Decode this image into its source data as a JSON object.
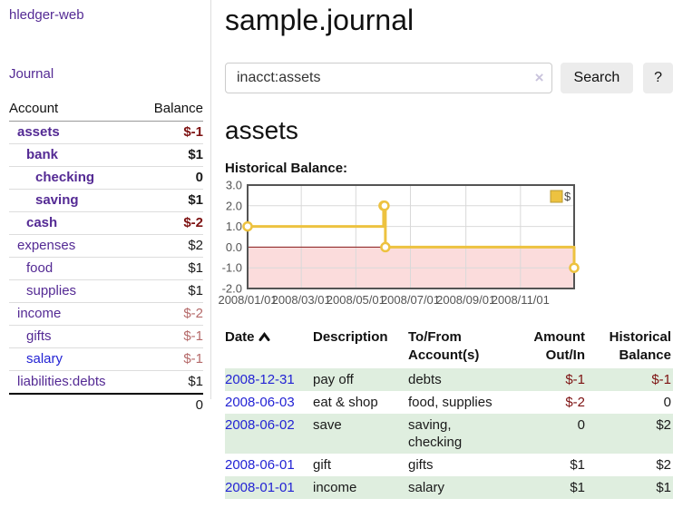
{
  "app": {
    "title": "hledger-web"
  },
  "sidebar": {
    "journal_label": "Journal",
    "table": {
      "account_header": "Account",
      "balance_header": "Balance",
      "accounts": [
        {
          "name": "assets",
          "balance": "$-1"
        },
        {
          "name": "bank",
          "balance": "$1"
        },
        {
          "name": "checking",
          "balance": "0"
        },
        {
          "name": "saving",
          "balance": "$1"
        },
        {
          "name": "cash",
          "balance": "$-2"
        },
        {
          "name": "expenses",
          "balance": "$2"
        },
        {
          "name": "food",
          "balance": "$1"
        },
        {
          "name": "supplies",
          "balance": "$1"
        },
        {
          "name": "income",
          "balance": "$-2"
        },
        {
          "name": "gifts",
          "balance": "$-1"
        },
        {
          "name": "salary",
          "balance": "$-1"
        },
        {
          "name": "liabilities:debts",
          "balance": "$1"
        }
      ],
      "total": "0"
    }
  },
  "main": {
    "title": "sample.journal",
    "search": {
      "value": "inacct:assets",
      "clear_icon": "×",
      "button_label": "Search",
      "help_label": "?"
    },
    "account_heading": "assets",
    "chart_label": "Historical Balance:",
    "register_table": {
      "headers": {
        "date": "Date",
        "description": "Description",
        "accounts": "To/From Account(s)",
        "amount": "Amount Out/In",
        "balance": "Historical Balance"
      },
      "rows": [
        {
          "date": "2008-12-31",
          "description": "pay off",
          "accounts": "debts",
          "amount": "$-1",
          "balance": "$-1"
        },
        {
          "date": "2008-06-03",
          "description": "eat & shop",
          "accounts": "food, supplies",
          "amount": "$-2",
          "balance": "0"
        },
        {
          "date": "2008-06-02",
          "description": "save",
          "accounts": "saving, checking",
          "amount": "0",
          "balance": "$2"
        },
        {
          "date": "2008-06-01",
          "description": "gift",
          "accounts": "gifts",
          "amount": "$1",
          "balance": "$2"
        },
        {
          "date": "2008-01-01",
          "description": "income",
          "accounts": "salary",
          "amount": "$1",
          "balance": "$1"
        }
      ]
    }
  },
  "chart_data": {
    "type": "line",
    "step": true,
    "title": "Historical Balance",
    "series": [
      {
        "name": "$",
        "color": "#edc240",
        "points": [
          {
            "date": "2008-01-01",
            "day": 0,
            "value": 1
          },
          {
            "date": "2008-06-01",
            "day": 152,
            "value": 2
          },
          {
            "date": "2008-06-02",
            "day": 153,
            "value": 2
          },
          {
            "date": "2008-06-03",
            "day": 154,
            "value": 0
          },
          {
            "date": "2008-12-31",
            "day": 365,
            "value": -1
          }
        ]
      }
    ],
    "x_ticks": [
      {
        "day": 0,
        "label": "2008/01/01"
      },
      {
        "day": 60,
        "label": "2008/03/01"
      },
      {
        "day": 121,
        "label": "2008/05/01"
      },
      {
        "day": 182,
        "label": "2008/07/01"
      },
      {
        "day": 244,
        "label": "2008/09/01"
      },
      {
        "day": 305,
        "label": "2008/11/01"
      }
    ],
    "y_ticks": [
      {
        "value": 3,
        "label": "3.0"
      },
      {
        "value": 2,
        "label": "2.0"
      },
      {
        "value": 1,
        "label": "1.0"
      },
      {
        "value": 0,
        "label": "0.0"
      },
      {
        "value": -1,
        "label": "-1.0"
      },
      {
        "value": -2,
        "label": "-2.0"
      }
    ],
    "xlim_days": [
      0,
      365
    ],
    "ylim": [
      -2,
      3
    ],
    "grid": true,
    "legend": {
      "label": "$",
      "position": "top-right"
    }
  },
  "icons": {
    "sort": "chevron-up",
    "clear": "x"
  },
  "colors": {
    "accent_purple": "#542a94",
    "link_blue": "#2323d4",
    "negative_strong": "#7d1212",
    "negative_soft": "#b56a6a",
    "row_stripe_green": "#dfeedf",
    "chart_series_gold": "#edc240",
    "chart_negative_region": "#fbdcdc",
    "chart_zero_line": "#8b1a1a",
    "chart_border": "#545454",
    "chart_grid": "#d9d9d9",
    "chart_text": "#545454"
  }
}
